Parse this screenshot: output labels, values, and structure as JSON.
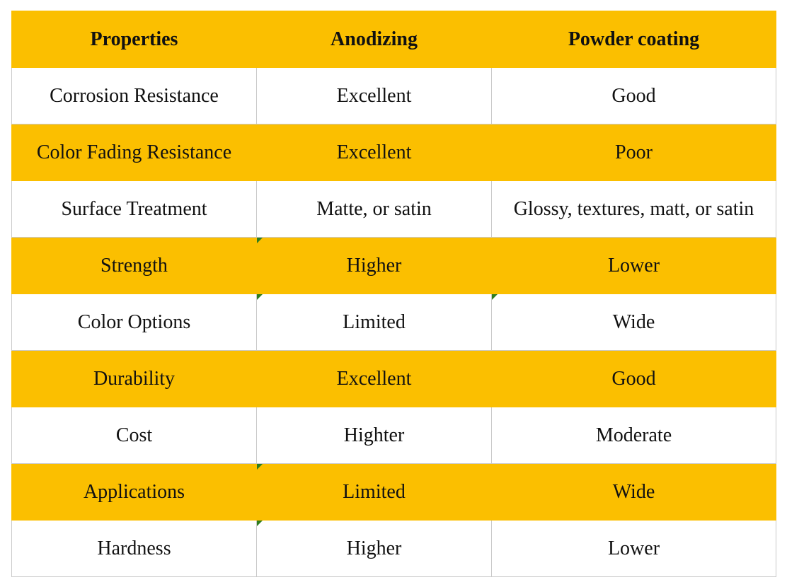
{
  "table": {
    "header": [
      "Properties",
      "Anodizing",
      "Powder coating"
    ],
    "rows": [
      [
        "Corrosion Resistance",
        "Excellent",
        "Good"
      ],
      [
        "Color Fading Resistance",
        "Excellent",
        "Poor"
      ],
      [
        "Surface Treatment",
        "Matte, or satin",
        "Glossy, textures, matt, or satin"
      ],
      [
        "Strength",
        "Higher",
        "Lower"
      ],
      [
        "Color Options",
        "Limited",
        "Wide"
      ],
      [
        "Durability",
        "Excellent",
        "Good"
      ],
      [
        "Cost",
        "Highter",
        "Moderate"
      ],
      [
        "Applications",
        "Limited",
        "Wide"
      ],
      [
        "Hardness",
        "Higher",
        "Lower"
      ]
    ]
  }
}
